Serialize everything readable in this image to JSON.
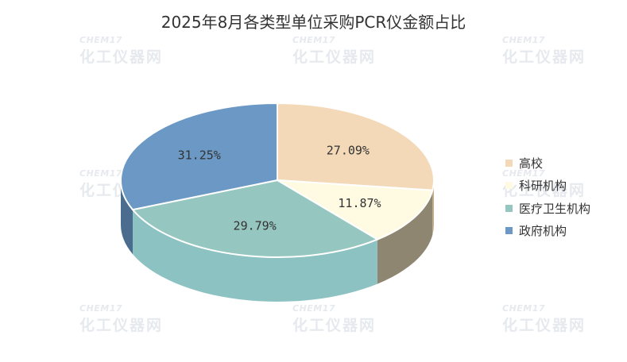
{
  "chart_data": {
    "type": "pie",
    "title": "2025年8月各类型单位采购PCR仪金额占比",
    "slices": [
      {
        "label": "高校",
        "value": 27.09,
        "display": "27.09%",
        "color": "#f3d9b8",
        "side": "#c9ad8a"
      },
      {
        "label": "科研机构",
        "value": 11.87,
        "display": "11.87%",
        "color": "#fffbe2",
        "side": "#8f8672"
      },
      {
        "label": "医疗卫生机构",
        "value": 29.79,
        "display": "29.79%",
        "color": "#96c6c0",
        "side": "#8dc2c2"
      },
      {
        "label": "政府机构",
        "value": 31.25,
        "display": "31.25%",
        "color": "#6b98c4",
        "side": "#4a6d8f"
      }
    ],
    "legend_position": "right"
  },
  "watermark": {
    "top": "CHEM17",
    "main": "化工仪器网"
  }
}
